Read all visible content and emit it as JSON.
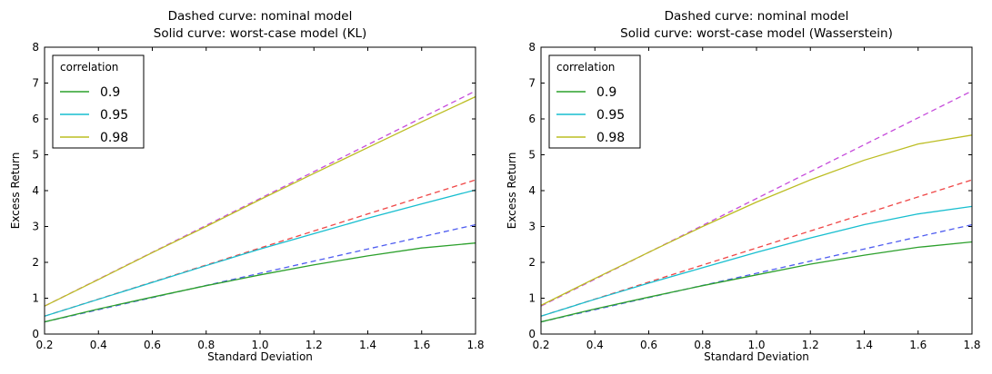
{
  "chart_data": [
    {
      "type": "line",
      "title": [
        "Dashed curve: nominal model",
        "Solid curve: worst-case model (KL)"
      ],
      "xlabel": "Standard Deviation",
      "ylabel": "Excess Return",
      "xlim": [
        0.2,
        1.8
      ],
      "ylim": [
        0,
        8
      ],
      "x_ticks": [
        "0.2",
        "0.4",
        "0.6",
        "0.8",
        "1.0",
        "1.2",
        "1.4",
        "1.6",
        "1.8"
      ],
      "y_ticks": [
        "0",
        "1",
        "2",
        "3",
        "4",
        "5",
        "6",
        "7",
        "8"
      ],
      "grid": false,
      "legend": {
        "title": "correlation",
        "position": "top-left",
        "entries": [
          {
            "label": "0.9",
            "color": "#2ca02c"
          },
          {
            "label": "0.95",
            "color": "#17becf"
          },
          {
            "label": "0.98",
            "color": "#bcbd22"
          }
        ]
      },
      "series": [
        {
          "style": "dashed",
          "color": "#4e5cf0",
          "x": [
            0.2,
            1.8
          ],
          "y": [
            0.34,
            3.05
          ]
        },
        {
          "style": "dashed",
          "color": "#ef4646",
          "x": [
            0.2,
            1.8
          ],
          "y": [
            0.5,
            4.3
          ]
        },
        {
          "style": "dashed",
          "color": "#c64cdb",
          "x": [
            0.2,
            1.8
          ],
          "y": [
            0.78,
            6.78
          ]
        },
        {
          "style": "solid",
          "color": "#2ca02c",
          "x": [
            0.2,
            0.4,
            0.6,
            0.8,
            1.0,
            1.2,
            1.4,
            1.6,
            1.8
          ],
          "y": [
            0.34,
            0.7,
            1.03,
            1.35,
            1.65,
            1.93,
            2.18,
            2.4,
            2.54
          ]
        },
        {
          "style": "solid",
          "color": "#17becf",
          "x": [
            0.2,
            0.4,
            0.6,
            0.8,
            1.0,
            1.2,
            1.4,
            1.6,
            1.8
          ],
          "y": [
            0.5,
            0.97,
            1.44,
            1.91,
            2.37,
            2.8,
            3.23,
            3.63,
            4.02
          ]
        },
        {
          "style": "solid",
          "color": "#bcbd22",
          "x": [
            0.2,
            0.4,
            0.6,
            0.8,
            1.0,
            1.2,
            1.4,
            1.6,
            1.8
          ],
          "y": [
            0.78,
            1.52,
            2.27,
            3.0,
            3.75,
            4.48,
            5.2,
            5.92,
            6.62
          ]
        }
      ]
    },
    {
      "type": "line",
      "title": [
        "Dashed curve: nominal model",
        "Solid curve: worst-case model (Wasserstein)"
      ],
      "xlabel": "Standard Deviation",
      "ylabel": "Excess Return",
      "xlim": [
        0.2,
        1.8
      ],
      "ylim": [
        0,
        8
      ],
      "x_ticks": [
        "0.2",
        "0.4",
        "0.6",
        "0.8",
        "1.0",
        "1.2",
        "1.4",
        "1.6",
        "1.8"
      ],
      "y_ticks": [
        "0",
        "1",
        "2",
        "3",
        "4",
        "5",
        "6",
        "7",
        "8"
      ],
      "grid": false,
      "legend": {
        "title": "correlation",
        "position": "top-left",
        "entries": [
          {
            "label": "0.9",
            "color": "#2ca02c"
          },
          {
            "label": "0.95",
            "color": "#17becf"
          },
          {
            "label": "0.98",
            "color": "#bcbd22"
          }
        ]
      },
      "series": [
        {
          "style": "dashed",
          "color": "#4e5cf0",
          "x": [
            0.2,
            1.8
          ],
          "y": [
            0.34,
            3.05
          ]
        },
        {
          "style": "dashed",
          "color": "#ef4646",
          "x": [
            0.2,
            1.8
          ],
          "y": [
            0.5,
            4.3
          ]
        },
        {
          "style": "dashed",
          "color": "#c64cdb",
          "x": [
            0.2,
            1.8
          ],
          "y": [
            0.78,
            6.78
          ]
        },
        {
          "style": "solid",
          "color": "#2ca02c",
          "x": [
            0.2,
            0.4,
            0.6,
            0.8,
            1.0,
            1.2,
            1.4,
            1.6,
            1.8
          ],
          "y": [
            0.34,
            0.7,
            1.03,
            1.35,
            1.65,
            1.95,
            2.2,
            2.42,
            2.57
          ]
        },
        {
          "style": "solid",
          "color": "#17becf",
          "x": [
            0.2,
            0.4,
            0.6,
            0.8,
            1.0,
            1.2,
            1.4,
            1.6,
            1.8
          ],
          "y": [
            0.5,
            0.97,
            1.42,
            1.85,
            2.28,
            2.68,
            3.05,
            3.35,
            3.56
          ]
        },
        {
          "style": "solid",
          "color": "#bcbd22",
          "x": [
            0.2,
            0.4,
            0.6,
            0.8,
            1.0,
            1.2,
            1.4,
            1.6,
            1.8
          ],
          "y": [
            0.8,
            1.55,
            2.28,
            3.0,
            3.68,
            4.3,
            4.85,
            5.3,
            5.55
          ]
        }
      ]
    }
  ]
}
